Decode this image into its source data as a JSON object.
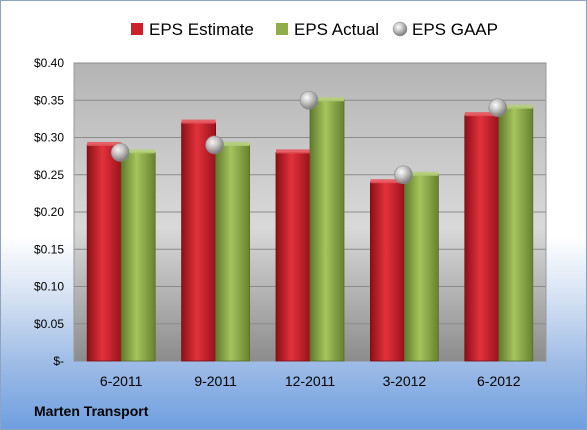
{
  "company": "Marten Transport",
  "chart_data": {
    "type": "bar",
    "categories": [
      "6-2011",
      "9-2011",
      "12-2011",
      "3-2012",
      "6-2012"
    ],
    "series": [
      {
        "name": "EPS Estimate",
        "kind": "bar",
        "color": "#cc1f2a",
        "values": [
          0.29,
          0.32,
          0.28,
          0.24,
          0.33
        ]
      },
      {
        "name": "EPS Actual",
        "kind": "bar",
        "color": "#8fae4a",
        "values": [
          0.28,
          0.29,
          0.35,
          0.25,
          0.34
        ]
      },
      {
        "name": "EPS GAAP",
        "kind": "marker",
        "color": "#b8b8b8",
        "values": [
          0.28,
          0.29,
          0.35,
          0.25,
          0.34
        ]
      }
    ],
    "yticks": [
      "$-",
      "$0.05",
      "$0.10",
      "$0.15",
      "$0.20",
      "$0.25",
      "$0.30",
      "$0.35",
      "$0.40"
    ],
    "ylim": [
      0,
      0.4
    ],
    "grid": true,
    "legend_position": "top"
  }
}
